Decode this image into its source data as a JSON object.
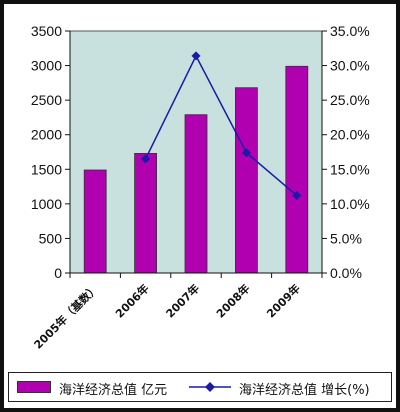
{
  "chart_data": {
    "type": "bar",
    "categories": [
      "2005年（基数）",
      "2006年",
      "2007年",
      "2008年",
      "2009年"
    ],
    "series": [
      {
        "name": "海洋经济总值  亿元",
        "type": "bar",
        "axis": "left",
        "values": [
          1490,
          1730,
          2290,
          2680,
          2990
        ]
      },
      {
        "name": "海洋经济总值  增长(%)",
        "type": "line",
        "axis": "right",
        "values": [
          null,
          16.5,
          31.4,
          17.4,
          11.2
        ]
      }
    ],
    "ylim": [
      0,
      3500
    ],
    "yticks": [
      "0",
      "500",
      "1000",
      "1500",
      "2000",
      "2500",
      "3000",
      "3500"
    ],
    "y2lim": [
      0,
      35
    ],
    "y2ticks": [
      "0.0%",
      "5.0%",
      "10.0%",
      "15.0%",
      "20.0%",
      "25.0%",
      "30.0%",
      "35.0%"
    ],
    "grid": false,
    "legend_position": "bottom",
    "colors": {
      "bar": "#b000b0",
      "line": "#1a1aa8",
      "plot_background": "#c8e0de"
    }
  }
}
